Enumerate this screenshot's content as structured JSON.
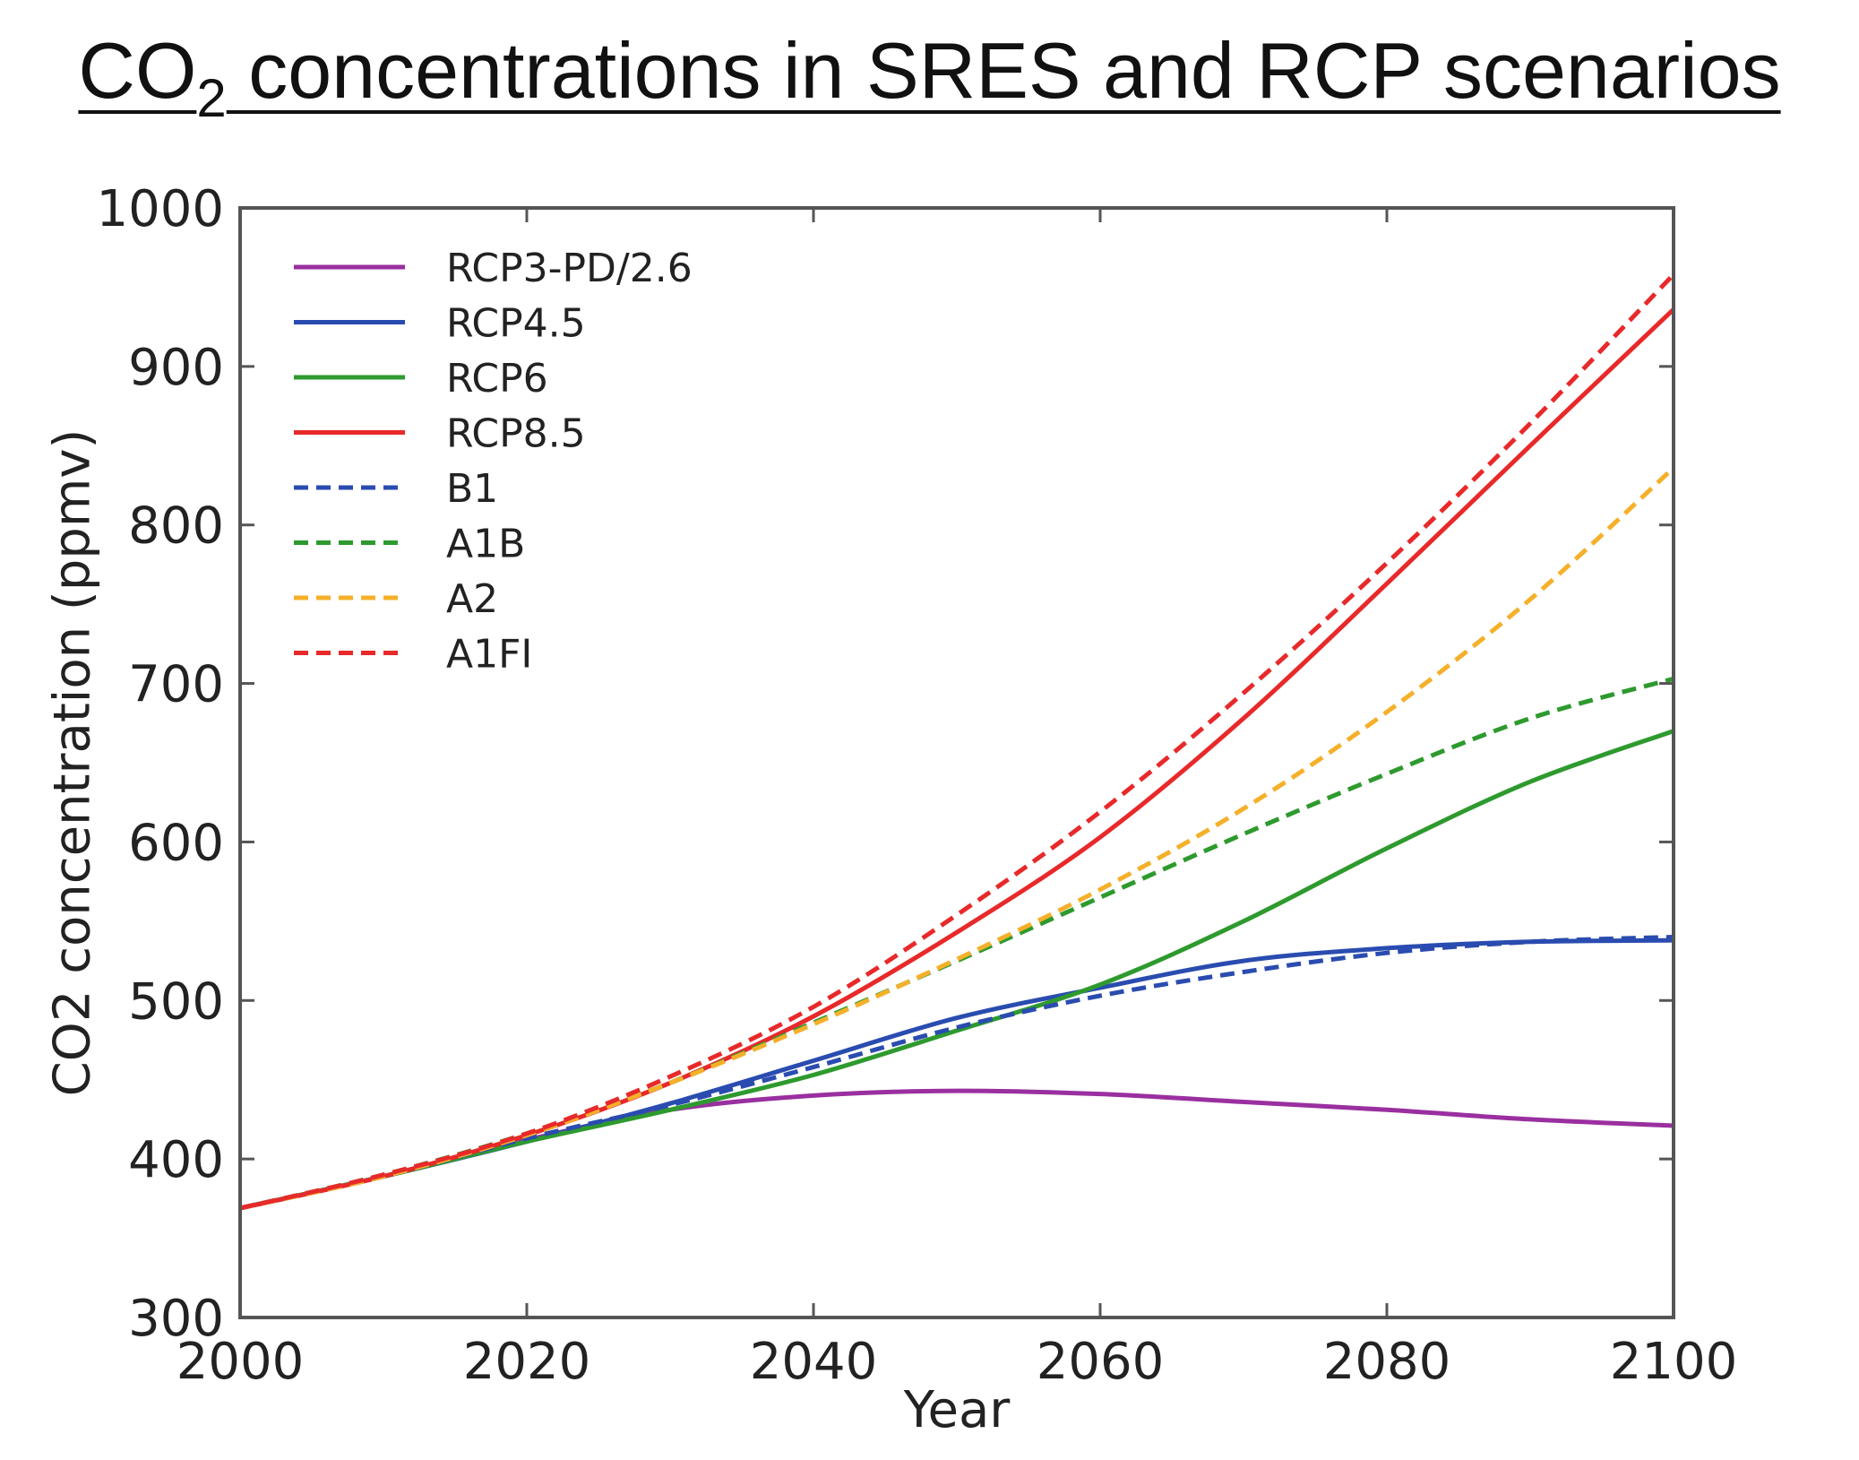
{
  "title": {
    "prefix": "CO",
    "subscript": "2",
    "suffix": " concentrations in SRES and RCP scenarios"
  },
  "chart_data": {
    "type": "line",
    "xlabel": "Year",
    "ylabel": "CO2 concentration (ppmv)",
    "xlim": [
      2000,
      2100
    ],
    "ylim": [
      300,
      1000
    ],
    "xticks": [
      2000,
      2020,
      2040,
      2060,
      2080,
      2100
    ],
    "yticks": [
      300,
      400,
      500,
      600,
      700,
      800,
      900,
      1000
    ],
    "grid": false,
    "legend_position": "top-left",
    "x": [
      2000,
      2010,
      2020,
      2030,
      2040,
      2050,
      2060,
      2070,
      2080,
      2090,
      2100
    ],
    "series": [
      {
        "name": "RCP3-PD/2.6",
        "style": "solid",
        "color": "#9a2fa0",
        "values": [
          369,
          389,
          412,
          431,
          440,
          443,
          441,
          436,
          431,
          425,
          421
        ]
      },
      {
        "name": "RCP4.5",
        "style": "solid",
        "color": "#2a4cb0",
        "values": [
          369,
          389,
          411,
          435,
          462,
          489,
          508,
          525,
          533,
          537,
          538
        ]
      },
      {
        "name": "RCP6",
        "style": "solid",
        "color": "#2e9a2e",
        "values": [
          369,
          389,
          411,
          431,
          453,
          481,
          510,
          550,
          596,
          638,
          670
        ]
      },
      {
        "name": "RCP8.5",
        "style": "solid",
        "color": "#e8292a",
        "values": [
          369,
          389,
          415,
          448,
          490,
          543,
          603,
          678,
          763,
          850,
          936
        ]
      },
      {
        "name": "B1",
        "style": "dashed",
        "color": "#2a4cb0",
        "values": [
          369,
          389,
          413,
          434,
          458,
          483,
          503,
          518,
          530,
          537,
          540
        ]
      },
      {
        "name": "A1B",
        "style": "dashed",
        "color": "#2e9a2e",
        "values": [
          369,
          390,
          416,
          448,
          486,
          525,
          565,
          605,
          643,
          678,
          703
        ]
      },
      {
        "name": "A2",
        "style": "dashed",
        "color": "#f5b02a",
        "values": [
          369,
          389,
          415,
          448,
          485,
          526,
          570,
          621,
          682,
          753,
          836
        ]
      },
      {
        "name": "A1FI",
        "style": "dashed",
        "color": "#e8292a",
        "values": [
          369,
          390,
          416,
          452,
          496,
          554,
          619,
          694,
          776,
          864,
          958
        ]
      }
    ]
  }
}
